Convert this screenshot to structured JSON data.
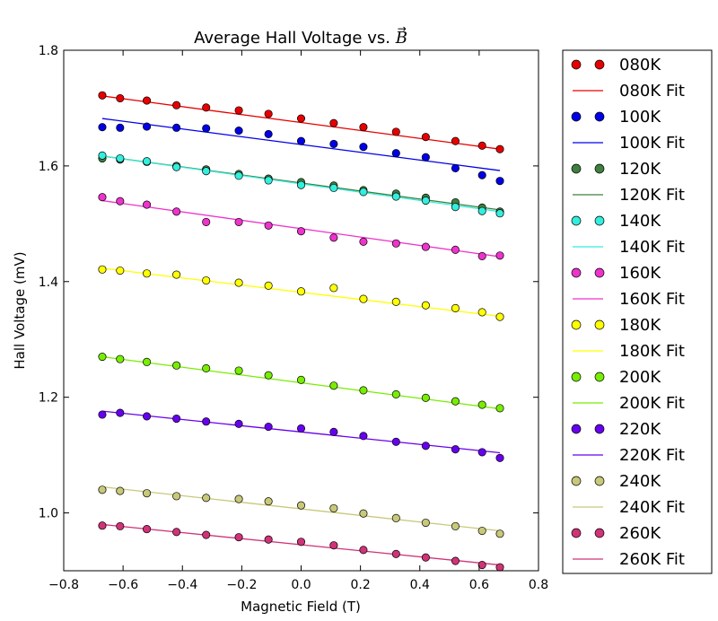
{
  "chart_data": {
    "type": "scatter",
    "title": "Average Hall Voltage vs. B⃗",
    "title_text": "Average Hall Voltage vs. ",
    "title_symbol": "B",
    "xlabel": "Magnetic Field (T)",
    "ylabel": "Hall Voltage (mV)",
    "xlim": [
      -0.8,
      0.8
    ],
    "ylim": [
      0.9,
      1.8
    ],
    "xticks": [
      -0.8,
      -0.6,
      -0.4,
      -0.2,
      0.0,
      0.2,
      0.4,
      0.6,
      0.8
    ],
    "xtick_labels": [
      "−0.8",
      "−0.6",
      "−0.4",
      "−0.2",
      "0.0",
      "0.2",
      "0.4",
      "0.6",
      "0.8"
    ],
    "yticks": [
      1.0,
      1.2,
      1.4,
      1.6,
      1.8
    ],
    "ytick_labels": [
      "1.0",
      "1.2",
      "1.4",
      "1.6",
      "1.8"
    ],
    "grid": false,
    "legend_position": "outside-right",
    "x": [
      -0.67,
      -0.61,
      -0.52,
      -0.42,
      -0.32,
      -0.21,
      -0.11,
      0.0,
      0.11,
      0.21,
      0.32,
      0.42,
      0.52,
      0.61,
      0.67
    ],
    "series": [
      {
        "name": "080K",
        "fit_name": "080K Fit",
        "color": "#e60000",
        "values": [
          1.722,
          1.717,
          1.713,
          1.705,
          1.701,
          1.696,
          1.69,
          1.682,
          1.674,
          1.667,
          1.659,
          1.65,
          1.643,
          1.635,
          1.629
        ],
        "fit": [
          1.721,
          1.629
        ]
      },
      {
        "name": "100K",
        "fit_name": "100K Fit",
        "color": "#0000e6",
        "values": [
          1.667,
          1.666,
          1.668,
          1.666,
          1.665,
          1.661,
          1.655,
          1.643,
          1.638,
          1.633,
          1.622,
          1.615,
          1.596,
          1.584,
          1.574
        ],
        "fit": [
          1.682,
          1.592
        ]
      },
      {
        "name": "120K",
        "fit_name": "120K Fit",
        "color": "#3f7f3f",
        "values": [
          1.613,
          1.611,
          1.607,
          1.6,
          1.594,
          1.586,
          1.578,
          1.572,
          1.566,
          1.558,
          1.552,
          1.545,
          1.537,
          1.528,
          1.521
        ],
        "fit": [
          1.617,
          1.524
        ]
      },
      {
        "name": "140K",
        "fit_name": "140K Fit",
        "color": "#33eedd",
        "values": [
          1.618,
          1.613,
          1.608,
          1.598,
          1.591,
          1.583,
          1.575,
          1.567,
          1.562,
          1.555,
          1.547,
          1.54,
          1.529,
          1.522,
          1.518
        ],
        "fit": [
          1.617,
          1.521
        ]
      },
      {
        "name": "160K",
        "fit_name": "160K Fit",
        "color": "#ee33cc",
        "values": [
          1.546,
          1.539,
          1.533,
          1.521,
          1.503,
          1.503,
          1.497,
          1.487,
          1.476,
          1.469,
          1.466,
          1.46,
          1.455,
          1.444,
          1.445
        ],
        "fit": [
          1.54,
          1.443
        ]
      },
      {
        "name": "180K",
        "fit_name": "180K Fit",
        "color": "#ffff00",
        "values": [
          1.421,
          1.419,
          1.414,
          1.412,
          1.402,
          1.398,
          1.393,
          1.383,
          1.389,
          1.37,
          1.365,
          1.359,
          1.354,
          1.347,
          1.339
        ],
        "fit": [
          1.423,
          1.34
        ]
      },
      {
        "name": "200K",
        "fit_name": "200K Fit",
        "color": "#77ee00",
        "values": [
          1.27,
          1.266,
          1.261,
          1.255,
          1.25,
          1.246,
          1.238,
          1.23,
          1.22,
          1.212,
          1.205,
          1.199,
          1.193,
          1.187,
          1.181
        ],
        "fit": [
          1.27,
          1.18
        ]
      },
      {
        "name": "220K",
        "fit_name": "220K Fit",
        "color": "#6600ee",
        "values": [
          1.17,
          1.173,
          1.167,
          1.163,
          1.158,
          1.154,
          1.149,
          1.146,
          1.14,
          1.133,
          1.123,
          1.116,
          1.11,
          1.105,
          1.095
        ],
        "fit": [
          1.176,
          1.104
        ]
      },
      {
        "name": "240K",
        "fit_name": "240K Fit",
        "color": "#c8c87a",
        "values": [
          1.04,
          1.038,
          1.034,
          1.029,
          1.026,
          1.024,
          1.02,
          1.013,
          1.008,
          0.999,
          0.991,
          0.983,
          0.977,
          0.969,
          0.964
        ],
        "fit": [
          1.045,
          0.969
        ]
      },
      {
        "name": "260K",
        "fit_name": "260K Fit",
        "color": "#d03377",
        "values": [
          0.978,
          0.977,
          0.972,
          0.967,
          0.962,
          0.958,
          0.954,
          0.95,
          0.944,
          0.936,
          0.929,
          0.923,
          0.917,
          0.91,
          0.906
        ],
        "fit": [
          0.98,
          0.91
        ]
      }
    ]
  }
}
